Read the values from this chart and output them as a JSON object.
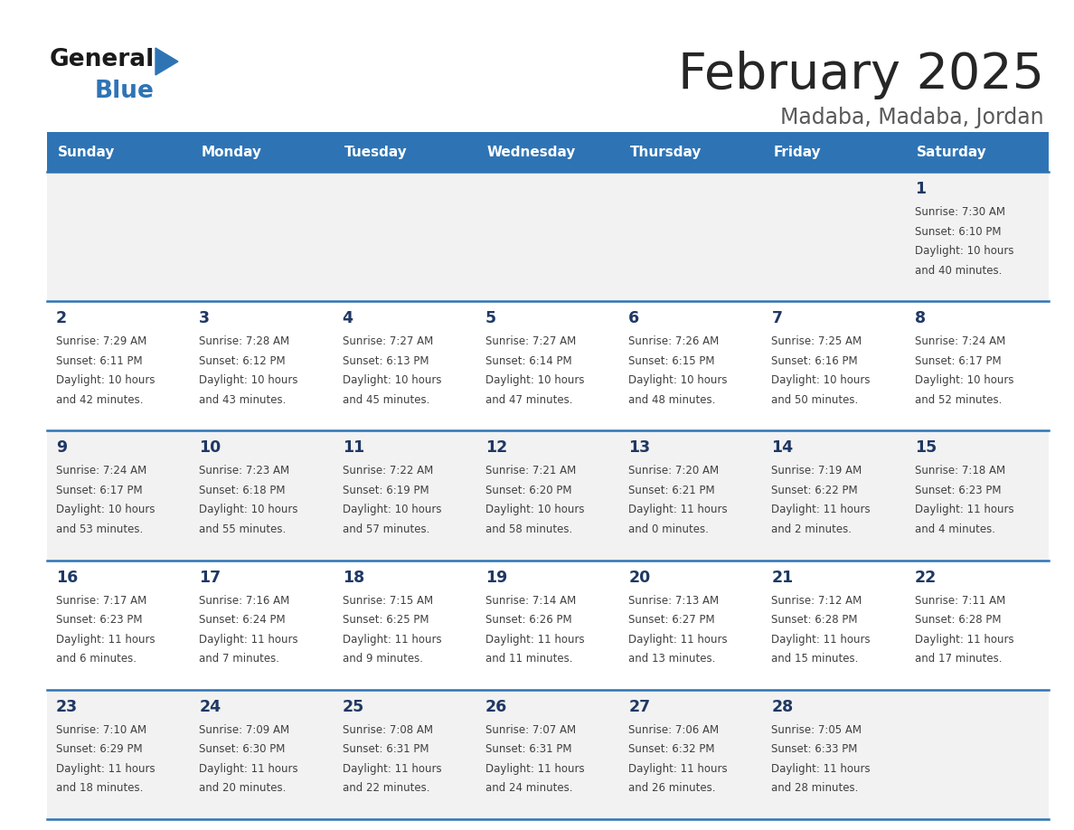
{
  "title": "February 2025",
  "subtitle": "Madaba, Madaba, Jordan",
  "days_of_week": [
    "Sunday",
    "Monday",
    "Tuesday",
    "Wednesday",
    "Thursday",
    "Friday",
    "Saturday"
  ],
  "header_bg": "#2E74B5",
  "header_text": "#FFFFFF",
  "cell_bg_odd": "#F2F2F2",
  "cell_bg_even": "#FFFFFF",
  "day_num_color": "#1F3864",
  "text_color": "#404040",
  "border_color": "#2E74B5",
  "title_color": "#262626",
  "subtitle_color": "#595959",
  "logo_general_color": "#1A1A1A",
  "logo_blue_color": "#2E74B5",
  "calendar": [
    [
      null,
      null,
      null,
      null,
      null,
      null,
      1
    ],
    [
      2,
      3,
      4,
      5,
      6,
      7,
      8
    ],
    [
      9,
      10,
      11,
      12,
      13,
      14,
      15
    ],
    [
      16,
      17,
      18,
      19,
      20,
      21,
      22
    ],
    [
      23,
      24,
      25,
      26,
      27,
      28,
      null
    ]
  ],
  "sunrise_data": {
    "1": "7:30 AM",
    "2": "7:29 AM",
    "3": "7:28 AM",
    "4": "7:27 AM",
    "5": "7:27 AM",
    "6": "7:26 AM",
    "7": "7:25 AM",
    "8": "7:24 AM",
    "9": "7:24 AM",
    "10": "7:23 AM",
    "11": "7:22 AM",
    "12": "7:21 AM",
    "13": "7:20 AM",
    "14": "7:19 AM",
    "15": "7:18 AM",
    "16": "7:17 AM",
    "17": "7:16 AM",
    "18": "7:15 AM",
    "19": "7:14 AM",
    "20": "7:13 AM",
    "21": "7:12 AM",
    "22": "7:11 AM",
    "23": "7:10 AM",
    "24": "7:09 AM",
    "25": "7:08 AM",
    "26": "7:07 AM",
    "27": "7:06 AM",
    "28": "7:05 AM"
  },
  "sunset_data": {
    "1": "6:10 PM",
    "2": "6:11 PM",
    "3": "6:12 PM",
    "4": "6:13 PM",
    "5": "6:14 PM",
    "6": "6:15 PM",
    "7": "6:16 PM",
    "8": "6:17 PM",
    "9": "6:17 PM",
    "10": "6:18 PM",
    "11": "6:19 PM",
    "12": "6:20 PM",
    "13": "6:21 PM",
    "14": "6:22 PM",
    "15": "6:23 PM",
    "16": "6:23 PM",
    "17": "6:24 PM",
    "18": "6:25 PM",
    "19": "6:26 PM",
    "20": "6:27 PM",
    "21": "6:28 PM",
    "22": "6:28 PM",
    "23": "6:29 PM",
    "24": "6:30 PM",
    "25": "6:31 PM",
    "26": "6:31 PM",
    "27": "6:32 PM",
    "28": "6:33 PM"
  },
  "daylight_data": {
    "1": "10 hours and 40 minutes.",
    "2": "10 hours and 42 minutes.",
    "3": "10 hours and 43 minutes.",
    "4": "10 hours and 45 minutes.",
    "5": "10 hours and 47 minutes.",
    "6": "10 hours and 48 minutes.",
    "7": "10 hours and 50 minutes.",
    "8": "10 hours and 52 minutes.",
    "9": "10 hours and 53 minutes.",
    "10": "10 hours and 55 minutes.",
    "11": "10 hours and 57 minutes.",
    "12": "10 hours and 58 minutes.",
    "13": "11 hours and 0 minutes.",
    "14": "11 hours and 2 minutes.",
    "15": "11 hours and 4 minutes.",
    "16": "11 hours and 6 minutes.",
    "17": "11 hours and 7 minutes.",
    "18": "11 hours and 9 minutes.",
    "19": "11 hours and 11 minutes.",
    "20": "11 hours and 13 minutes.",
    "21": "11 hours and 15 minutes.",
    "22": "11 hours and 17 minutes.",
    "23": "11 hours and 18 minutes.",
    "24": "11 hours and 20 minutes.",
    "25": "11 hours and 22 minutes.",
    "26": "11 hours and 24 minutes.",
    "27": "11 hours and 26 minutes.",
    "28": "11 hours and 28 minutes."
  }
}
